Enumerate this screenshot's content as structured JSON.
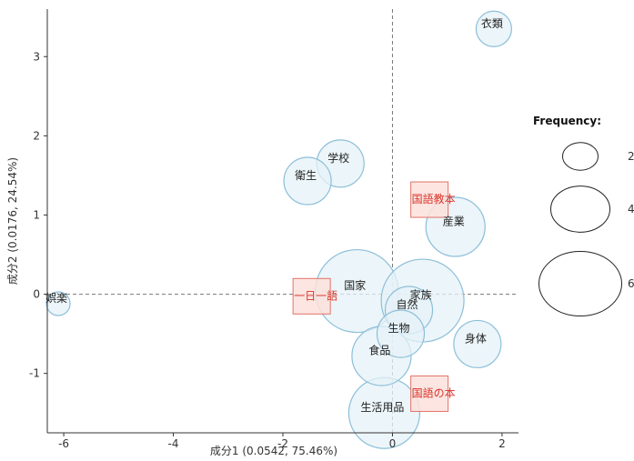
{
  "chart_data": {
    "type": "scatter",
    "subtype": "correspondence-analysis-bubble",
    "xlabel": "成分1 (0.0542, 75.46%)",
    "ylabel": "成分2 (0.0176, 24.54%)",
    "xlim": [
      -6.3,
      2.3
    ],
    "ylim": [
      -1.75,
      3.6
    ],
    "x_ticks": [
      -6,
      -4,
      -2,
      0,
      2
    ],
    "y_ticks": [
      -1,
      0,
      1,
      2,
      3
    ],
    "grid": false,
    "reference_lines": "dashed lines at x=0 and y=0",
    "legend_position": "right",
    "colors": {
      "word_fill": "#e6f2f7",
      "word_stroke": "#8cbfd9",
      "category_fill": "#fde1dc",
      "category_stroke": "#e0736a",
      "category_text": "#d9352b",
      "axis": "#333333"
    },
    "words": [
      {
        "label": "衣類",
        "x": 1.85,
        "y": 3.35,
        "frequency": 2
      },
      {
        "label": "学校",
        "x": -0.95,
        "y": 1.65,
        "frequency": 3
      },
      {
        "label": "衛生",
        "x": -1.55,
        "y": 1.43,
        "frequency": 3
      },
      {
        "label": "産業",
        "x": 1.15,
        "y": 0.85,
        "frequency": 4
      },
      {
        "label": "国家",
        "x": -0.65,
        "y": 0.04,
        "frequency": 6
      },
      {
        "label": "家族",
        "x": 0.55,
        "y": -0.08,
        "frequency": 6
      },
      {
        "label": "自然",
        "x": 0.3,
        "y": -0.2,
        "frequency": 3
      },
      {
        "label": "生物",
        "x": 0.15,
        "y": -0.5,
        "frequency": 3
      },
      {
        "label": "身体",
        "x": 1.55,
        "y": -0.63,
        "frequency": 3
      },
      {
        "label": "食品",
        "x": -0.2,
        "y": -0.78,
        "frequency": 4
      },
      {
        "label": "生活用品",
        "x": -0.15,
        "y": -1.5,
        "frequency": 5
      },
      {
        "label": "娯楽",
        "x": -6.1,
        "y": -0.12,
        "frequency": 1
      }
    ],
    "categories": [
      {
        "label": "国語教本",
        "x": 0.75,
        "y": 1.2
      },
      {
        "label": "一日一語",
        "x": -1.4,
        "y": -0.02
      },
      {
        "label": "国語の本",
        "x": 0.75,
        "y": -1.25
      }
    ],
    "legend": {
      "title": "Frequency:",
      "entries": [
        {
          "label": "2",
          "frequency": 2
        },
        {
          "label": "4",
          "frequency": 4
        },
        {
          "label": "6",
          "frequency": 6
        }
      ]
    }
  }
}
